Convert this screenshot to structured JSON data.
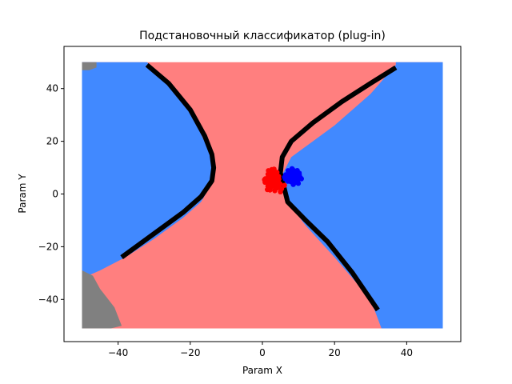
{
  "chart_data": {
    "type": "scatter",
    "title": "Подстановочный классификатор (plug-in)",
    "xlabel": "Param X",
    "ylabel": "Param Y",
    "xlim": [
      -55,
      55
    ],
    "ylim": [
      -56,
      56
    ],
    "xticks": [
      -40,
      -20,
      0,
      20,
      40
    ],
    "yticks": [
      -40,
      -20,
      0,
      20,
      40
    ],
    "grid": false,
    "legend": "none",
    "colors": {
      "region_class_1": "#ff7f7f",
      "region_class_2": "#4189ff",
      "region_unknown": "#808080",
      "points_class_1": "#ff0000",
      "points_class_2": "#0000ff",
      "boundary": "#000000"
    },
    "decision_regions": {
      "grid_extent": {
        "x": [
          -50,
          50
        ],
        "y": [
          -50,
          50
        ]
      },
      "class_1_label": "red region",
      "class_2_label": "blue region",
      "unknown_label": "gray region",
      "left_blue": [
        [
          -50,
          50
        ],
        [
          -32,
          50
        ],
        [
          -26,
          43
        ],
        [
          -20,
          31
        ],
        [
          -15,
          17
        ],
        [
          -13.5,
          10
        ],
        [
          -14,
          4
        ],
        [
          -17,
          -3
        ],
        [
          -22,
          -9
        ],
        [
          -30,
          -17
        ],
        [
          -38,
          -24
        ],
        [
          -45,
          -29
        ],
        [
          -50,
          -32
        ]
      ],
      "right_blue": [
        [
          37,
          50
        ],
        [
          50,
          50
        ],
        [
          50,
          -51
        ],
        [
          33,
          -51
        ],
        [
          30,
          -40
        ],
        [
          20,
          -24
        ],
        [
          12,
          -12
        ],
        [
          7,
          -3
        ],
        [
          5,
          6
        ],
        [
          8,
          14
        ],
        [
          14,
          20
        ],
        [
          20,
          26
        ],
        [
          30,
          38
        ],
        [
          37,
          49
        ]
      ],
      "gray_top_left": [
        [
          -50,
          50
        ],
        [
          -46,
          50
        ],
        [
          -46,
          48
        ],
        [
          -48,
          47
        ],
        [
          -50,
          47
        ]
      ],
      "gray_bottom_left": [
        [
          -50,
          -29
        ],
        [
          -47,
          -31
        ],
        [
          -45,
          -36
        ],
        [
          -41,
          -43
        ],
        [
          -39,
          -50
        ],
        [
          -42,
          -51
        ],
        [
          -50,
          -51
        ]
      ]
    },
    "boundary_curves": [
      {
        "x": [
          -32,
          -26,
          -20,
          -16,
          -14,
          -13.5,
          -14,
          -17,
          -22,
          -30,
          -39
        ],
        "y": [
          49,
          42,
          32,
          22,
          15,
          10,
          5,
          -1,
          -7,
          -15,
          -24
        ]
      },
      {
        "x": [
          37,
          30,
          22,
          14,
          8,
          5.5,
          5,
          7,
          12,
          18,
          25,
          32
        ],
        "y": [
          48,
          42,
          35,
          27,
          20,
          14,
          8,
          -3,
          -10,
          -18,
          -30,
          -44
        ]
      }
    ],
    "clusters": [
      {
        "class": 1,
        "center": [
          3,
          5
        ],
        "spread": [
          1.6,
          2.5
        ],
        "count": 80
      },
      {
        "class": 2,
        "center": [
          8.5,
          6.5
        ],
        "spread": [
          1.6,
          1.6
        ],
        "count": 100
      }
    ]
  }
}
